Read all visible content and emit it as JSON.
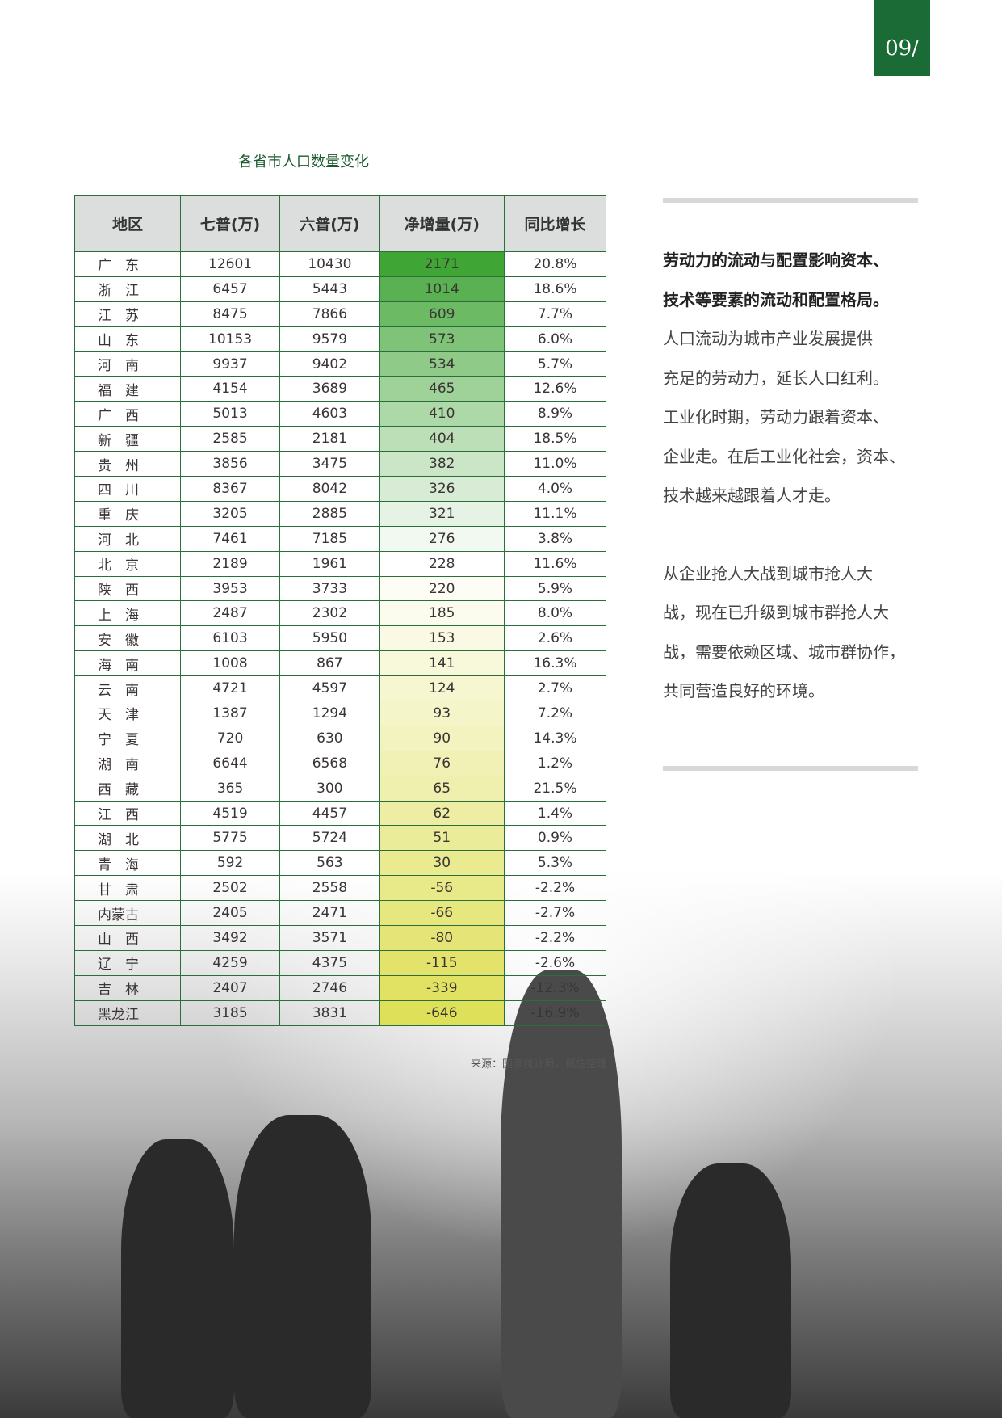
{
  "page_number": "09/",
  "table": {
    "title": "各省市人口数量变化",
    "headers": [
      "地区",
      "七普(万)",
      "六普(万)",
      "净增量(万)",
      "同比增长"
    ],
    "rows": [
      [
        "广　东",
        "12601",
        "10430",
        "2171",
        "20.8%"
      ],
      [
        "浙　江",
        "6457",
        "5443",
        "1014",
        "18.6%"
      ],
      [
        "江　苏",
        "8475",
        "7866",
        "609",
        "7.7%"
      ],
      [
        "山　东",
        "10153",
        "9579",
        "573",
        "6.0%"
      ],
      [
        "河　南",
        "9937",
        "9402",
        "534",
        "5.7%"
      ],
      [
        "福　建",
        "4154",
        "3689",
        "465",
        "12.6%"
      ],
      [
        "广　西",
        "5013",
        "4603",
        "410",
        "8.9%"
      ],
      [
        "新　疆",
        "2585",
        "2181",
        "404",
        "18.5%"
      ],
      [
        "贵　州",
        "3856",
        "3475",
        "382",
        "11.0%"
      ],
      [
        "四　川",
        "8367",
        "8042",
        "326",
        "4.0%"
      ],
      [
        "重　庆",
        "3205",
        "2885",
        "321",
        "11.1%"
      ],
      [
        "河　北",
        "7461",
        "7185",
        "276",
        "3.8%"
      ],
      [
        "北　京",
        "2189",
        "1961",
        "228",
        "11.6%"
      ],
      [
        "陕　西",
        "3953",
        "3733",
        "220",
        "5.9%"
      ],
      [
        "上　海",
        "2487",
        "2302",
        "185",
        "8.0%"
      ],
      [
        "安　徽",
        "6103",
        "5950",
        "153",
        "2.6%"
      ],
      [
        "海　南",
        "1008",
        "867",
        "141",
        "16.3%"
      ],
      [
        "云　南",
        "4721",
        "4597",
        "124",
        "2.7%"
      ],
      [
        "天　津",
        "1387",
        "1294",
        "93",
        "7.2%"
      ],
      [
        "宁　夏",
        "720",
        "630",
        "90",
        "14.3%"
      ],
      [
        "湖　南",
        "6644",
        "6568",
        "76",
        "1.2%"
      ],
      [
        "西　藏",
        "365",
        "300",
        "65",
        "21.5%"
      ],
      [
        "江　西",
        "4519",
        "4457",
        "62",
        "1.4%"
      ],
      [
        "湖　北",
        "5775",
        "5724",
        "51",
        "0.9%"
      ],
      [
        "青　海",
        "592",
        "563",
        "30",
        "5.3%"
      ],
      [
        "甘　肃",
        "2502",
        "2558",
        "-56",
        "-2.2%"
      ],
      [
        "内蒙古",
        "2405",
        "2471",
        "-66",
        "-2.7%"
      ],
      [
        "山　西",
        "3492",
        "3571",
        "-80",
        "-2.2%"
      ],
      [
        "辽　宁",
        "4259",
        "4375",
        "-115",
        "-2.6%"
      ],
      [
        "吉　林",
        "2407",
        "2746",
        "-339",
        "-12.3%"
      ],
      [
        "黑龙江",
        "3185",
        "3831",
        "-646",
        "-16.9%"
      ]
    ],
    "heat_colors": {
      "high": "#3fa535",
      "mid": "#ffffff",
      "low": "#dfe05a"
    },
    "source": "来源：国家统计局，佩信整理"
  },
  "sidebar": {
    "bold_lines": [
      "劳动力的流动与配置影响资本、",
      "技术等要素的流动和配置格局。"
    ],
    "para1_lines": [
      "人口流动为城市产业发展提供",
      "充足的劳动力，延长人口红利。",
      "工业化时期，劳动力跟着资本、",
      "企业走。在后工业化社会，资本、",
      "技术越来越跟着人才走。"
    ],
    "para2_lines": [
      "从企业抢人大战到城市抢人大",
      "战，现在已升级到城市群抢人大",
      "战，需要依赖区域、城市群协作，",
      "共同营造良好的环境。"
    ]
  },
  "colors": {
    "brand_green": "#1a6b35"
  }
}
